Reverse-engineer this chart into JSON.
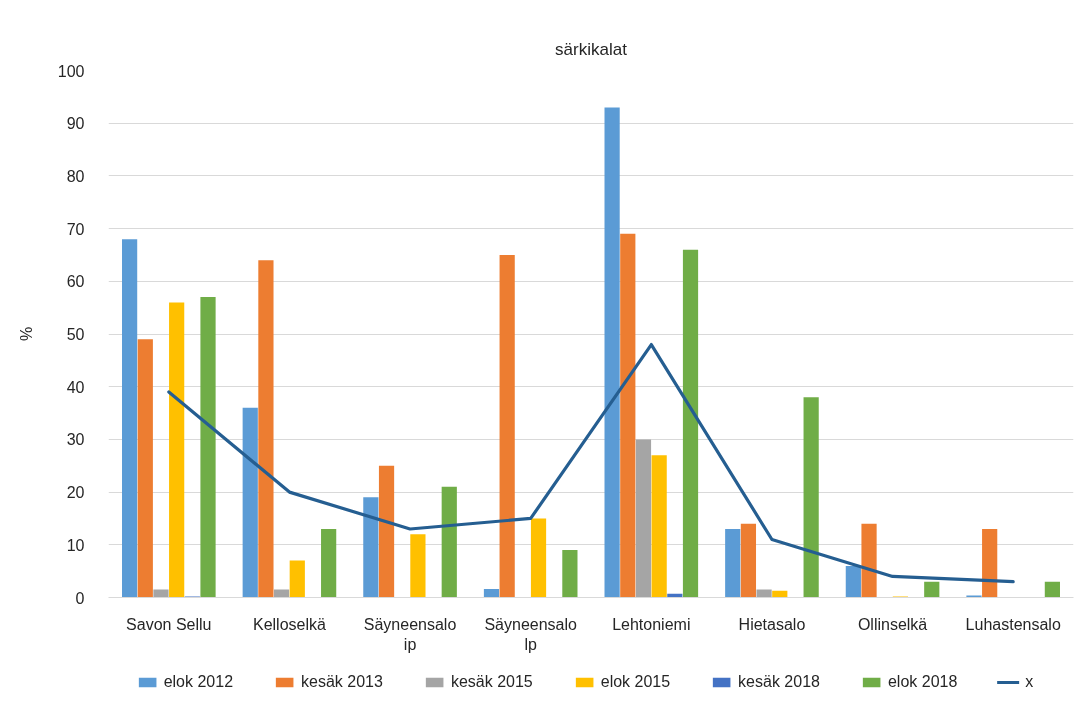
{
  "chart_data": {
    "type": "bar",
    "title": "särkikalat",
    "ylabel": "%",
    "categories": [
      "Savon Sellu",
      "Kelloselkä",
      "Säyneensalo ip",
      "Säyneensalo lp",
      "Lehtoniemi",
      "Hietasalo",
      "Ollinselkä",
      "Luhastensalo"
    ],
    "series": [
      {
        "name": "elok 2012",
        "color": "#5b9bd5",
        "values": [
          68,
          36,
          19,
          1.6,
          93,
          13,
          6,
          0.4
        ]
      },
      {
        "name": "kesäk 2013",
        "color": "#ed7d31",
        "values": [
          49,
          64,
          25,
          65,
          69,
          14,
          14,
          13
        ]
      },
      {
        "name": "kesäk 2015",
        "color": "#a5a5a5",
        "values": [
          1.5,
          1.5,
          null,
          null,
          30,
          1.5,
          null,
          null
        ]
      },
      {
        "name": "elok 2015",
        "color": "#ffc000",
        "values": [
          56,
          7,
          12,
          15,
          27,
          1.3,
          0.2,
          null
        ]
      },
      {
        "name": "kesäk 2018",
        "color": "#4472c4",
        "values": [
          0.2,
          null,
          null,
          null,
          0.7,
          null,
          null,
          null
        ]
      },
      {
        "name": "elok 2018",
        "color": "#70ad47",
        "values": [
          57,
          13,
          21,
          9,
          66,
          38,
          3,
          3
        ]
      },
      {
        "name": "x",
        "type": "line",
        "color": "#255e91",
        "values": [
          39,
          20,
          13,
          15,
          48,
          11,
          4,
          3
        ]
      }
    ],
    "ylim": [
      0,
      100
    ],
    "yticks": [
      0,
      10,
      20,
      30,
      40,
      50,
      60,
      70,
      80,
      90,
      100
    ],
    "grid": "y",
    "legend": "bottom"
  }
}
